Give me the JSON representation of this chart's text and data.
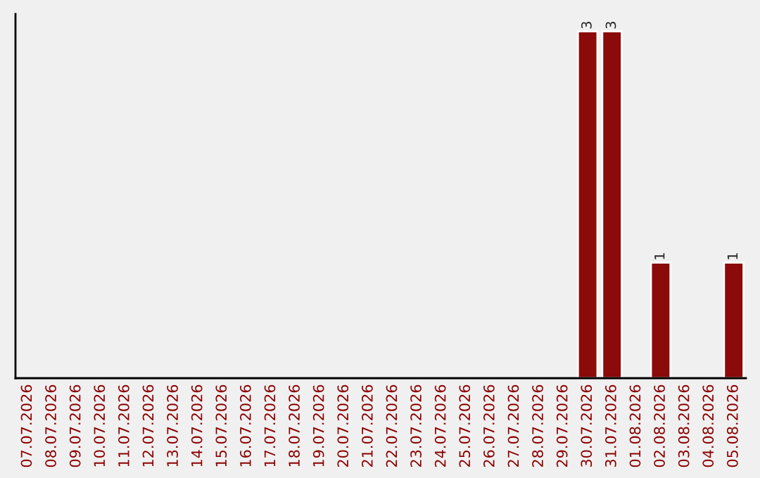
{
  "chart_data": {
    "type": "bar",
    "categories": [
      "07.07.2026",
      "08.07.2026",
      "09.07.2026",
      "10.07.2026",
      "11.07.2026",
      "12.07.2026",
      "13.07.2026",
      "14.07.2026",
      "15.07.2026",
      "16.07.2026",
      "17.07.2026",
      "18.07.2026",
      "19.07.2026",
      "20.07.2026",
      "21.07.2026",
      "22.07.2026",
      "23.07.2026",
      "24.07.2026",
      "25.07.2026",
      "26.07.2026",
      "27.07.2026",
      "28.07.2026",
      "29.07.2026",
      "30.07.2026",
      "31.07.2026",
      "01.08.2026",
      "02.08.2026",
      "03.08.2026",
      "04.08.2026",
      "05.08.2026"
    ],
    "values": [
      null,
      null,
      null,
      null,
      null,
      null,
      null,
      null,
      null,
      null,
      null,
      null,
      null,
      null,
      null,
      null,
      null,
      null,
      null,
      null,
      null,
      null,
      null,
      3,
      3,
      null,
      1,
      null,
      null,
      1
    ],
    "color": "#8b0a0a",
    "data_labels": true,
    "grid": false,
    "tick_labels": "x"
  }
}
